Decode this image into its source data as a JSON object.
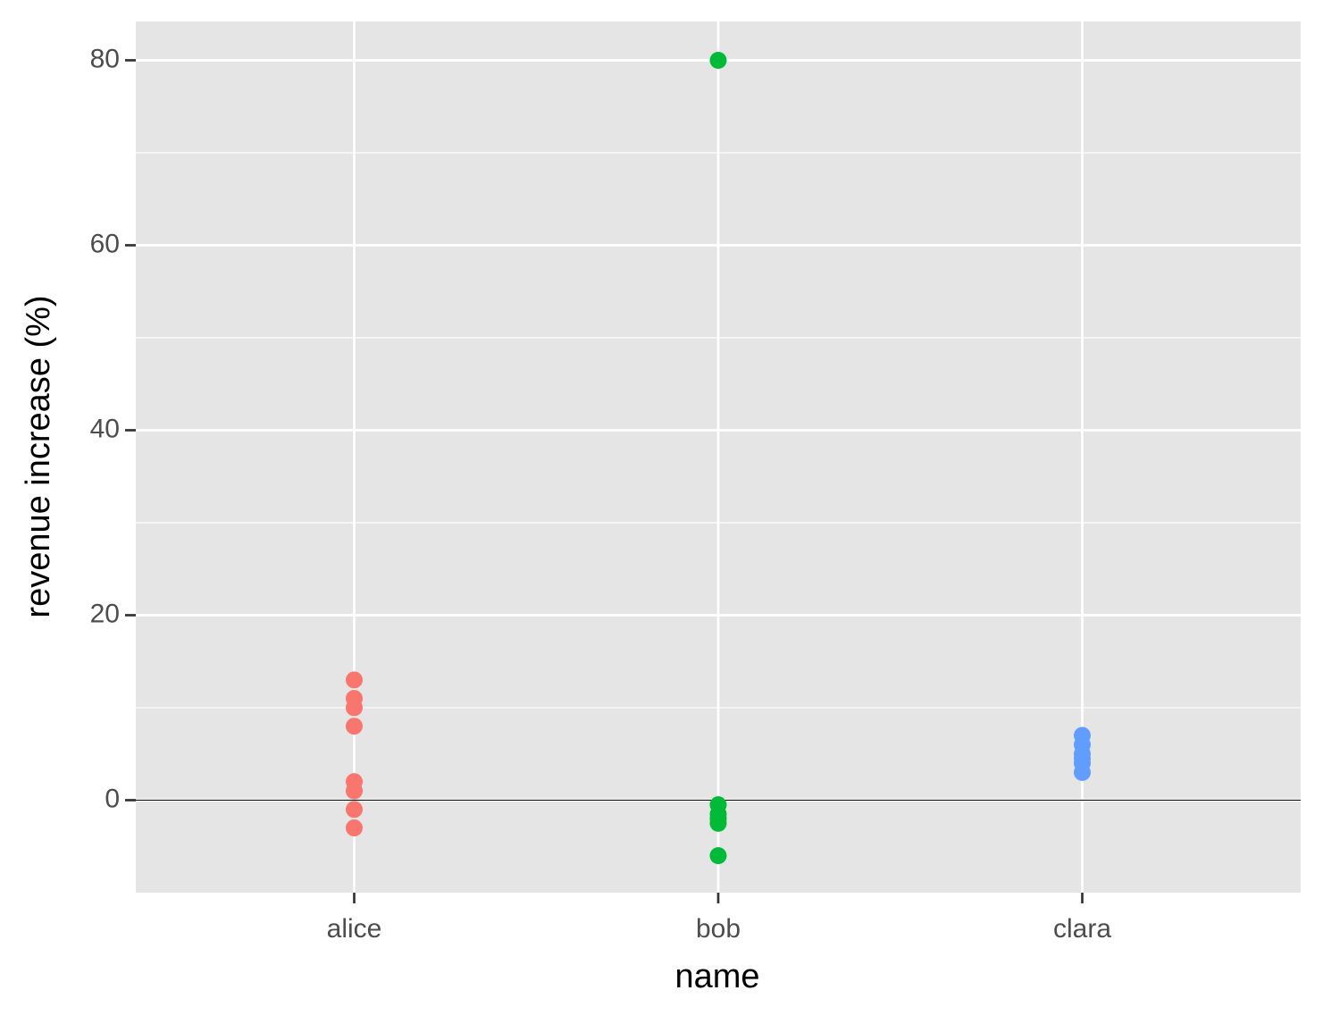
{
  "chart_data": {
    "type": "scatter",
    "x_label": "name",
    "y_label": "revenue increase (%)",
    "categories": [
      "alice",
      "bob",
      "clara"
    ],
    "colors": [
      "#F8766D",
      "#00BA38",
      "#619CFF"
    ],
    "values": [
      [
        13,
        11,
        10,
        8,
        2,
        1,
        -1,
        -3
      ],
      [
        80,
        -0.5,
        -1.5,
        -2,
        -2.5,
        -6
      ],
      [
        7,
        6,
        5,
        4.5,
        4,
        3
      ]
    ],
    "ylim": [
      -10,
      84.2
    ],
    "yticks": [
      0,
      20,
      40,
      60,
      80
    ],
    "minor_yticks": [
      10,
      30,
      50,
      70
    ],
    "hline": 0,
    "grid": true
  }
}
